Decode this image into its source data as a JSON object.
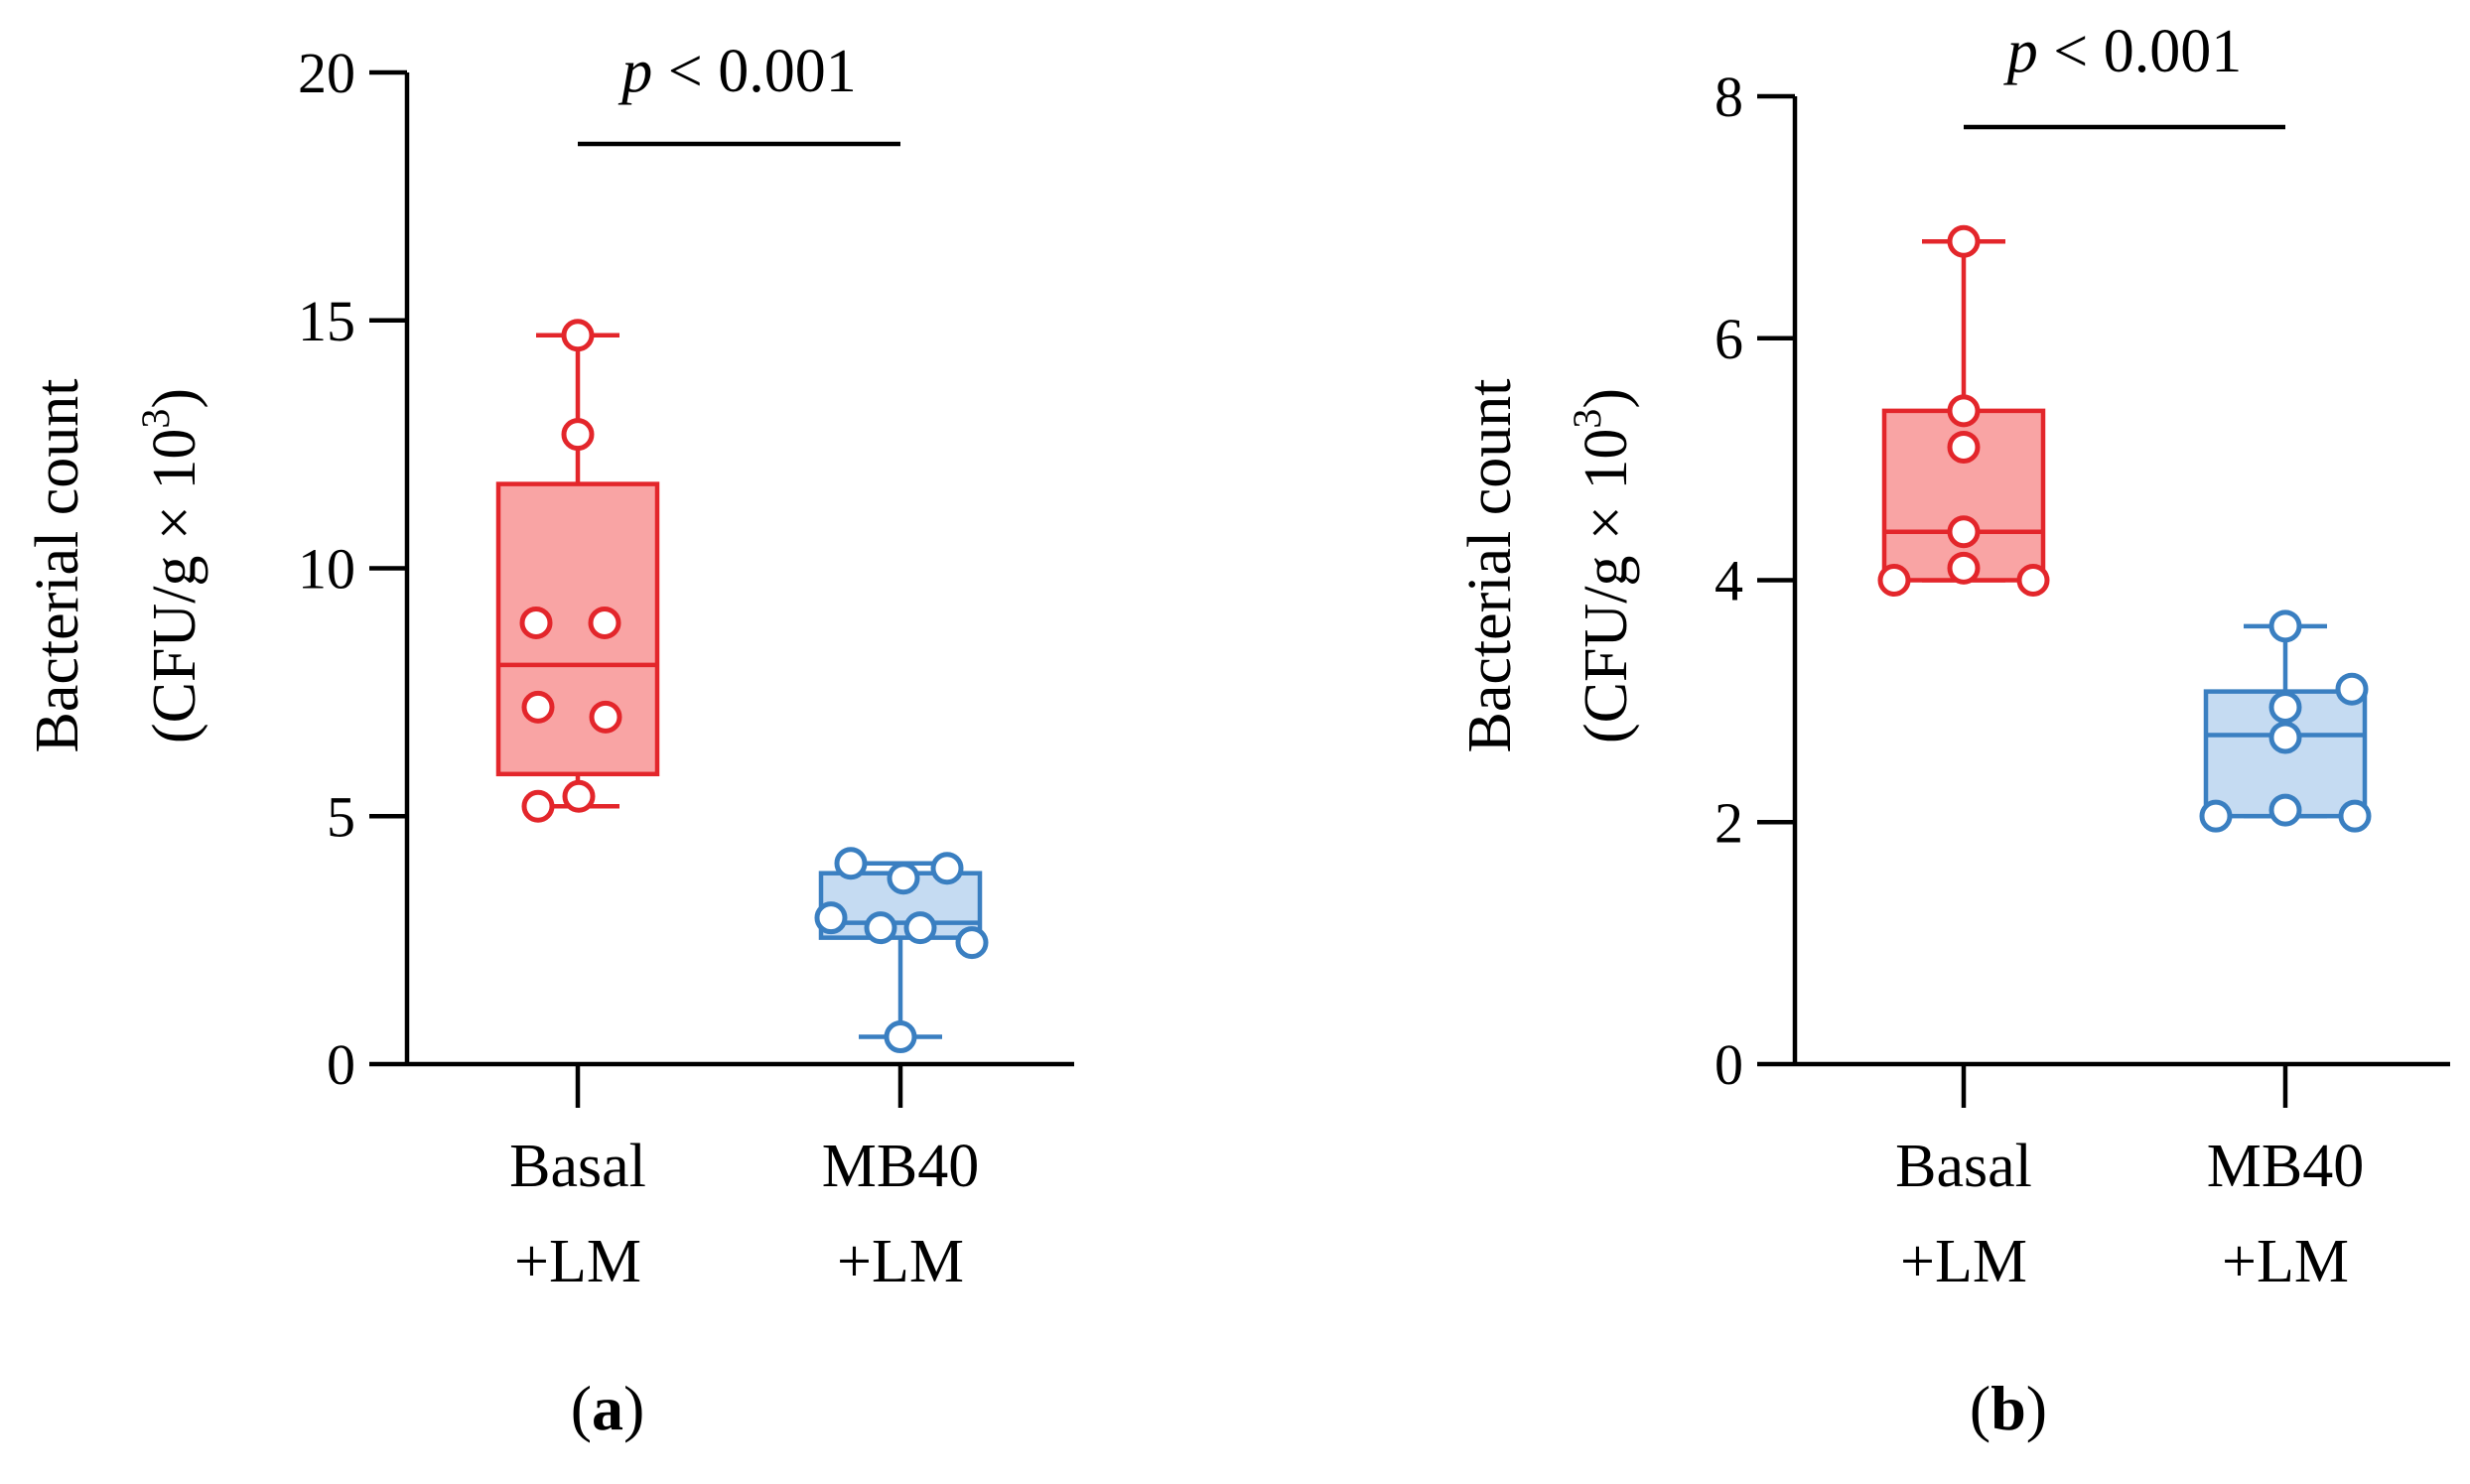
{
  "chart_data": [
    {
      "panel_label": "(a)",
      "type": "box",
      "categories": [
        "Basal\n+LM",
        "MB40\n+LM"
      ],
      "ylabel_line1": "Bacterial count",
      "ylabel_line2": "(CFU/g × 10",
      "ylabel_exp": "3",
      "ylabel_close": ")",
      "ylim": [
        0,
        20
      ],
      "yticks": [
        0,
        5,
        10,
        15,
        20
      ],
      "significance": "p < 0.001",
      "significance_p": "p",
      "significance_rest": " < 0.001",
      "series": [
        {
          "name": "Basal+LM",
          "color": "#e3262b",
          "fill": "#f9a4a4",
          "min": 5.2,
          "q1": 5.85,
          "median": 8.05,
          "q3": 11.7,
          "max": 14.7,
          "points": [
            14.7,
            12.7,
            8.9,
            8.9,
            7.2,
            7.0,
            5.4,
            5.2
          ]
        },
        {
          "name": "MB40+LM",
          "color": "#3a7fc1",
          "fill": "#c5dbf2",
          "min": 0.55,
          "q1": 2.55,
          "median": 2.85,
          "q3": 3.85,
          "max": 4.05,
          "points": [
            4.05,
            3.95,
            3.75,
            2.95,
            2.75,
            2.75,
            2.45,
            0.55
          ]
        }
      ]
    },
    {
      "panel_label": "(b)",
      "type": "box",
      "categories": [
        "Basal\n+LM",
        "MB40\n+LM"
      ],
      "ylabel_line1": "Bacterial count",
      "ylabel_line2": "(CFU/g × 10",
      "ylabel_exp": "3",
      "ylabel_close": ")",
      "ylim": [
        0,
        8
      ],
      "yticks": [
        0,
        2,
        4,
        6,
        8
      ],
      "significance": "p < 0.001",
      "significance_p": "p",
      "significance_rest": " < 0.001",
      "series": [
        {
          "name": "Basal+LM",
          "color": "#e3262b",
          "fill": "#f9a4a4",
          "min": 4.0,
          "q1": 4.0,
          "median": 4.4,
          "q3": 5.4,
          "max": 6.8,
          "points": [
            6.8,
            5.4,
            5.1,
            4.4,
            4.1,
            4.0,
            4.0
          ]
        },
        {
          "name": "MB40+LM",
          "color": "#3a7fc1",
          "fill": "#c5dbf2",
          "min": 2.05,
          "q1": 2.05,
          "median": 2.72,
          "q3": 3.08,
          "max": 3.62,
          "points": [
            3.62,
            3.1,
            2.95,
            2.7,
            2.1,
            2.05,
            2.05
          ]
        }
      ]
    }
  ]
}
